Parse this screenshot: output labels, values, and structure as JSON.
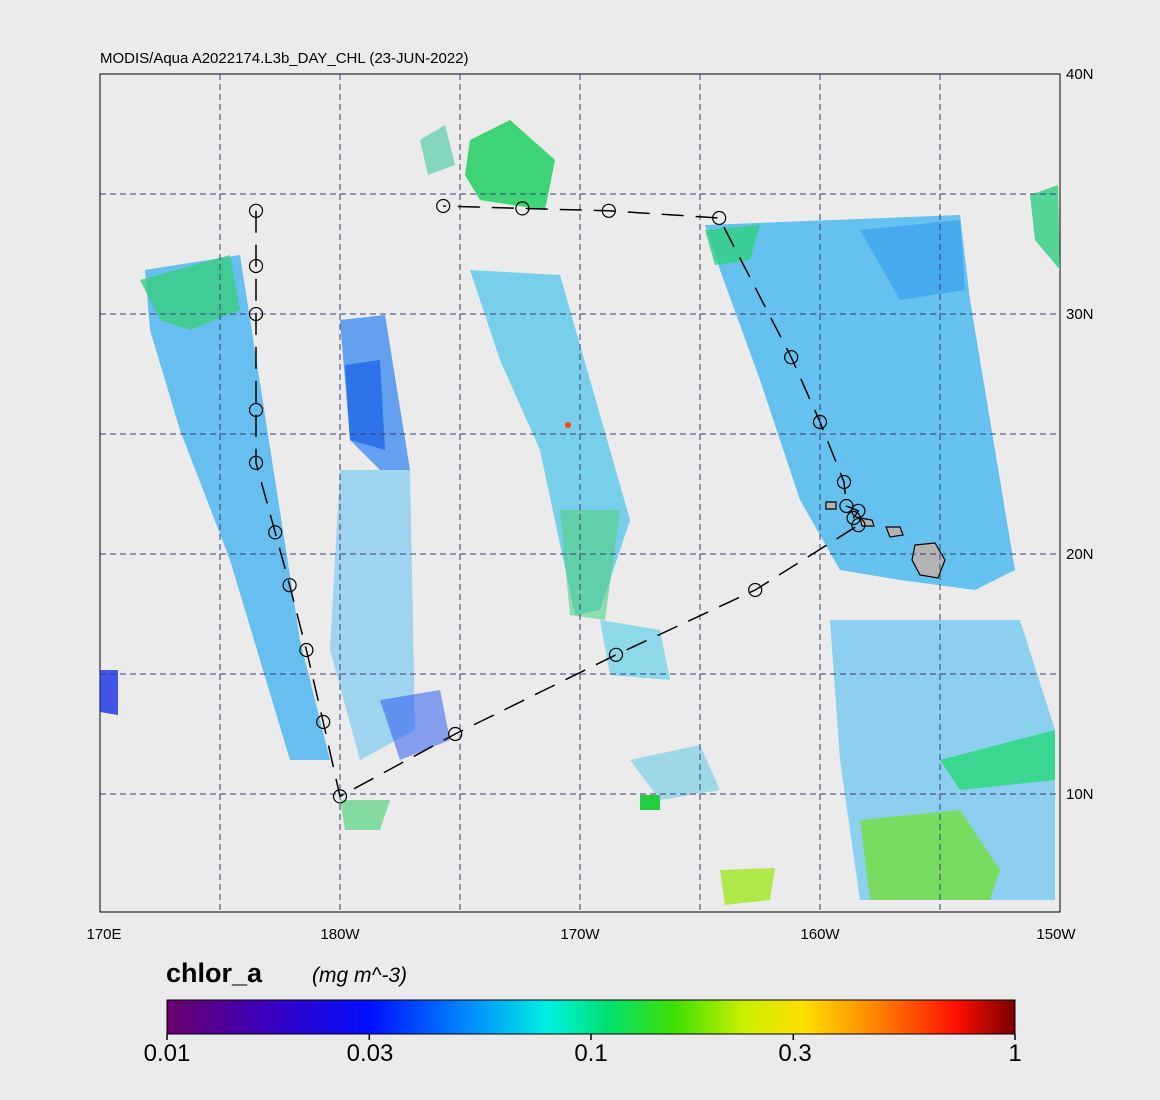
{
  "title": "MODIS/Aqua A2022174.L3b_DAY_CHL (23-JUN-2022)",
  "lat_labels": [
    "40N",
    "30N",
    "20N",
    "10N"
  ],
  "lon_labels": [
    "170E",
    "180W",
    "170W",
    "160W",
    "150W"
  ],
  "colorbar": {
    "variable": "chlor_a",
    "units": "(mg m^-3)",
    "ticks": [
      "0.01",
      "0.03",
      "0.1",
      "0.3",
      "1"
    ],
    "scale": "log",
    "range": [
      0.01,
      1
    ]
  },
  "colors": {
    "background": "#ebebeb",
    "gridline": "#3b3b7a",
    "land": "#b4b4b4",
    "track": "#000000"
  },
  "map_extent": {
    "lon_min": 170,
    "lon_max": 210,
    "lat_min": 5,
    "lat_max": 40
  },
  "track_points": [
    {
      "lon": 176.5,
      "lat": 34.3
    },
    {
      "lon": 176.5,
      "lat": 32.0
    },
    {
      "lon": 176.5,
      "lat": 30.0
    },
    {
      "lon": 176.5,
      "lat": 26.0
    },
    {
      "lon": 176.5,
      "lat": 23.8
    },
    {
      "lon": 177.3,
      "lat": 20.9
    },
    {
      "lon": 177.9,
      "lat": 18.7
    },
    {
      "lon": 178.6,
      "lat": 16.0
    },
    {
      "lon": 179.3,
      "lat": 13.0
    },
    {
      "lon": 180.0,
      "lat": 9.9
    },
    {
      "lon": 184.8,
      "lat": 12.5
    },
    {
      "lon": 191.5,
      "lat": 15.8
    },
    {
      "lon": 197.3,
      "lat": 18.5
    },
    {
      "lon": 201.6,
      "lat": 21.2
    },
    {
      "lon": 201.4,
      "lat": 21.5
    },
    {
      "lon": 201.6,
      "lat": 21.8
    },
    {
      "lon": 201.1,
      "lat": 22.0
    },
    {
      "lon": 201.0,
      "lat": 23.0
    },
    {
      "lon": 200.0,
      "lat": 25.5
    },
    {
      "lon": 198.8,
      "lat": 28.2
    },
    {
      "lon": 195.8,
      "lat": 34.0
    },
    {
      "lon": 191.2,
      "lat": 34.3
    },
    {
      "lon": 187.6,
      "lat": 34.4
    },
    {
      "lon": 184.3,
      "lat": 34.5
    }
  ]
}
